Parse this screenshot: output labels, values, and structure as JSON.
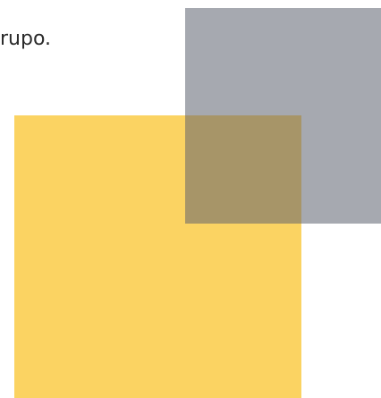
{
  "text": {
    "fragment": "rupo."
  },
  "colors": {
    "yellow": "#fbd362",
    "gray": "#a6a9b0",
    "overlap": "#a79568",
    "text": "#2b2b2b",
    "background": "#ffffff"
  }
}
